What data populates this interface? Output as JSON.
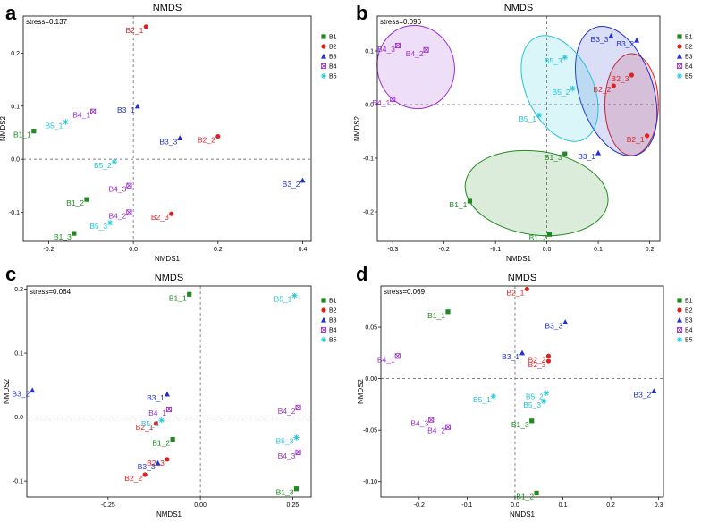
{
  "groups": [
    {
      "id": "B1",
      "name": "B1",
      "color": "#1e8a1e",
      "marker": "square"
    },
    {
      "id": "B2",
      "name": "B2",
      "color": "#e02020",
      "marker": "circle"
    },
    {
      "id": "B3",
      "name": "B3",
      "color": "#1f2fd0",
      "marker": "triangle"
    },
    {
      "id": "B4",
      "name": "B4",
      "color": "#9a2fd0",
      "marker": "crossbox"
    },
    {
      "id": "B5",
      "name": "B5",
      "color": "#22c4d8",
      "marker": "asterisk"
    }
  ],
  "chart_data": [
    {
      "panel": "a",
      "type": "scatter",
      "title": "NMDS",
      "stress": "stress=0.137",
      "xlabel": "NMDS1",
      "ylabel": "NMDS2",
      "xlim": [
        -0.26,
        0.42
      ],
      "ylim": [
        -0.155,
        0.27
      ],
      "xticks": [
        {
          "v": -0.2,
          "l": "-0.2"
        },
        {
          "v": 0.0,
          "l": "0.0"
        },
        {
          "v": 0.2,
          "l": "0.2"
        },
        {
          "v": 0.4,
          "l": "0.4"
        }
      ],
      "yticks": [
        {
          "v": -0.1,
          "l": "-0.1"
        },
        {
          "v": 0.0,
          "l": "0.0"
        },
        {
          "v": 0.1,
          "l": "0.1"
        },
        {
          "v": 0.2,
          "l": "0.2"
        }
      ],
      "points": [
        {
          "label": "B1_1",
          "g": "B1",
          "x": -0.235,
          "y": 0.053
        },
        {
          "label": "B1_2",
          "g": "B1",
          "x": -0.11,
          "y": -0.076
        },
        {
          "label": "B1_3",
          "g": "B1",
          "x": -0.14,
          "y": -0.14
        },
        {
          "label": "B2_1",
          "g": "B2",
          "x": 0.03,
          "y": 0.25
        },
        {
          "label": "B2_2",
          "g": "B2",
          "x": 0.2,
          "y": 0.043
        },
        {
          "label": "B2_3",
          "g": "B2",
          "x": 0.09,
          "y": -0.103
        },
        {
          "label": "B3_1",
          "g": "B3",
          "x": 0.01,
          "y": 0.1
        },
        {
          "label": "B3_2",
          "g": "B3",
          "x": 0.4,
          "y": -0.04
        },
        {
          "label": "B3_3",
          "g": "B3",
          "x": 0.11,
          "y": 0.04
        },
        {
          "label": "B4_1",
          "g": "B4",
          "x": -0.095,
          "y": 0.09
        },
        {
          "label": "B4_2",
          "g": "B4",
          "x": -0.01,
          "y": -0.1
        },
        {
          "label": "B4_3",
          "g": "B4",
          "x": -0.01,
          "y": -0.05
        },
        {
          "label": "B5_1",
          "g": "B5",
          "x": -0.16,
          "y": 0.07
        },
        {
          "label": "B5_2",
          "g": "B5",
          "x": -0.045,
          "y": -0.005
        },
        {
          "label": "B5_3",
          "g": "B5",
          "x": -0.055,
          "y": -0.12
        }
      ],
      "ellipses": []
    },
    {
      "panel": "b",
      "type": "scatter",
      "title": "NMDS",
      "stress": "stress=0.096",
      "xlabel": "NMDS1",
      "ylabel": "NMDS2",
      "xlim": [
        -0.33,
        0.22
      ],
      "ylim": [
        -0.255,
        0.165
      ],
      "xticks": [
        {
          "v": -0.3,
          "l": "-0.3"
        },
        {
          "v": -0.2,
          "l": "-0.2"
        },
        {
          "v": -0.1,
          "l": "-0.1"
        },
        {
          "v": 0.0,
          "l": "0.0"
        },
        {
          "v": 0.1,
          "l": "0.1"
        },
        {
          "v": 0.2,
          "l": "0.2"
        }
      ],
      "yticks": [
        {
          "v": -0.2,
          "l": "-0.2"
        },
        {
          "v": -0.1,
          "l": "-0.1"
        },
        {
          "v": 0.0,
          "l": "0.0"
        },
        {
          "v": 0.1,
          "l": "0.1"
        }
      ],
      "points": [
        {
          "label": "B1_1",
          "g": "B1",
          "x": -0.15,
          "y": -0.18
        },
        {
          "label": "B1_2",
          "g": "B1",
          "x": 0.005,
          "y": -0.242
        },
        {
          "label": "B1_3",
          "g": "B1",
          "x": 0.035,
          "y": -0.092
        },
        {
          "label": "B2_1",
          "g": "B2",
          "x": 0.195,
          "y": -0.058
        },
        {
          "label": "B2_2",
          "g": "B2",
          "x": 0.13,
          "y": 0.035
        },
        {
          "label": "B2_3",
          "g": "B2",
          "x": 0.165,
          "y": 0.055
        },
        {
          "label": "B3_1",
          "g": "B3",
          "x": 0.1,
          "y": -0.09
        },
        {
          "label": "B3_2",
          "g": "B3",
          "x": 0.175,
          "y": 0.12
        },
        {
          "label": "B3_3",
          "g": "B3",
          "x": 0.125,
          "y": 0.128
        },
        {
          "label": "B4_1",
          "g": "B4",
          "x": -0.3,
          "y": 0.01
        },
        {
          "label": "B4_2",
          "g": "B4",
          "x": -0.235,
          "y": 0.102
        },
        {
          "label": "B4_3",
          "g": "B4",
          "x": -0.29,
          "y": 0.11
        },
        {
          "label": "B5_1",
          "g": "B5",
          "x": -0.015,
          "y": -0.02
        },
        {
          "label": "B5_2",
          "g": "B5",
          "x": 0.05,
          "y": 0.03
        },
        {
          "label": "B5_3",
          "g": "B5",
          "x": 0.035,
          "y": 0.088
        }
      ],
      "ellipses": [
        {
          "g": "B1",
          "cx": -0.02,
          "cy": -0.165,
          "rx": 0.14,
          "ry": 0.078,
          "rot": -8
        },
        {
          "g": "B2",
          "cx": 0.165,
          "cy": 0.0,
          "rx": 0.052,
          "ry": 0.095,
          "rot": 0
        },
        {
          "g": "B3",
          "cx": 0.135,
          "cy": 0.025,
          "rx": 0.072,
          "ry": 0.125,
          "rot": 18
        },
        {
          "g": "B4",
          "cx": -0.255,
          "cy": 0.07,
          "rx": 0.075,
          "ry": 0.078,
          "rot": 15
        },
        {
          "g": "B5",
          "cx": 0.025,
          "cy": 0.03,
          "rx": 0.065,
          "ry": 0.105,
          "rot": 25
        }
      ]
    },
    {
      "panel": "c",
      "type": "scatter",
      "title": "NMDS",
      "stress": "stress=0.064",
      "xlabel": "NMDS1",
      "ylabel": "NMDS2",
      "xlim": [
        -0.47,
        0.3
      ],
      "ylim": [
        -0.125,
        0.205
      ],
      "xticks": [
        {
          "v": -0.25,
          "l": "-0.25"
        },
        {
          "v": 0.0,
          "l": "0.00"
        },
        {
          "v": 0.25,
          "l": "0.25"
        }
      ],
      "yticks": [
        {
          "v": -0.1,
          "l": "-0.1"
        },
        {
          "v": 0.0,
          "l": "0.0"
        },
        {
          "v": 0.1,
          "l": "0.1"
        },
        {
          "v": 0.2,
          "l": "0.2"
        }
      ],
      "points": [
        {
          "label": "B1_1",
          "g": "B1",
          "x": -0.03,
          "y": 0.192
        },
        {
          "label": "B1_2",
          "g": "B1",
          "x": -0.075,
          "y": -0.035
        },
        {
          "label": "B1_3",
          "g": "B1",
          "x": 0.26,
          "y": -0.112
        },
        {
          "label": "B2_1",
          "g": "B2",
          "x": -0.12,
          "y": -0.01
        },
        {
          "label": "B2_2",
          "g": "B2",
          "x": -0.15,
          "y": -0.09
        },
        {
          "label": "B2_3",
          "g": "B2",
          "x": -0.09,
          "y": -0.066
        },
        {
          "label": "B3_1",
          "g": "B3",
          "x": -0.09,
          "y": 0.036
        },
        {
          "label": "B3_2",
          "g": "B3",
          "x": -0.455,
          "y": 0.042
        },
        {
          "label": "B3_3",
          "g": "B3",
          "x": -0.115,
          "y": -0.072
        },
        {
          "label": "B4_1",
          "g": "B4",
          "x": -0.085,
          "y": 0.012
        },
        {
          "label": "B4_2",
          "g": "B4",
          "x": 0.265,
          "y": 0.015
        },
        {
          "label": "B4_3",
          "g": "B4",
          "x": 0.265,
          "y": -0.055
        },
        {
          "label": "B5_1",
          "g": "B5",
          "x": 0.255,
          "y": 0.19
        },
        {
          "label": "B5_2",
          "g": "B5",
          "x": -0.105,
          "y": -0.005
        },
        {
          "label": "B5_3",
          "g": "B5",
          "x": 0.26,
          "y": -0.032
        }
      ],
      "ellipses": []
    },
    {
      "panel": "d",
      "type": "scatter",
      "title": "NMDS",
      "stress": "stress=0.069",
      "xlabel": "NMDS1",
      "ylabel": "NMDS2",
      "xlim": [
        -0.28,
        0.31
      ],
      "ylim": [
        -0.115,
        0.09
      ],
      "xticks": [
        {
          "v": -0.2,
          "l": "-0.2"
        },
        {
          "v": -0.1,
          "l": "-0.1"
        },
        {
          "v": 0.0,
          "l": "0.0"
        },
        {
          "v": 0.1,
          "l": "0.1"
        },
        {
          "v": 0.2,
          "l": "0.2"
        },
        {
          "v": 0.3,
          "l": "0.3"
        }
      ],
      "yticks": [
        {
          "v": -0.1,
          "l": "-0.10"
        },
        {
          "v": -0.05,
          "l": "-0.05"
        },
        {
          "v": 0.0,
          "l": "0.00"
        },
        {
          "v": 0.05,
          "l": "0.05"
        }
      ],
      "points": [
        {
          "label": "B1_1",
          "g": "B1",
          "x": -0.14,
          "y": 0.065
        },
        {
          "label": "B1_2",
          "g": "B1",
          "x": 0.045,
          "y": -0.111
        },
        {
          "label": "B1_3",
          "g": "B1",
          "x": 0.035,
          "y": -0.041
        },
        {
          "label": "B2_1",
          "g": "B2",
          "x": 0.025,
          "y": 0.087
        },
        {
          "label": "B2_2",
          "g": "B2",
          "x": 0.07,
          "y": 0.022
        },
        {
          "label": "B2_3",
          "g": "B2",
          "x": 0.07,
          "y": 0.017
        },
        {
          "label": "B3_1",
          "g": "B3",
          "x": 0.015,
          "y": 0.025
        },
        {
          "label": "B3_2",
          "g": "B3",
          "x": 0.29,
          "y": -0.012
        },
        {
          "label": "B3_3",
          "g": "B3",
          "x": 0.105,
          "y": 0.055
        },
        {
          "label": "B4_1",
          "g": "B4",
          "x": -0.245,
          "y": 0.022
        },
        {
          "label": "B4_2",
          "g": "B4",
          "x": -0.14,
          "y": -0.047
        },
        {
          "label": "B4_3",
          "g": "B4",
          "x": -0.175,
          "y": -0.04
        },
        {
          "label": "B5_1",
          "g": "B5",
          "x": -0.045,
          "y": -0.017
        },
        {
          "label": "B5_2",
          "g": "B5",
          "x": 0.065,
          "y": -0.014
        },
        {
          "label": "B5_3",
          "g": "B5",
          "x": 0.06,
          "y": -0.022
        }
      ],
      "ellipses": []
    }
  ]
}
